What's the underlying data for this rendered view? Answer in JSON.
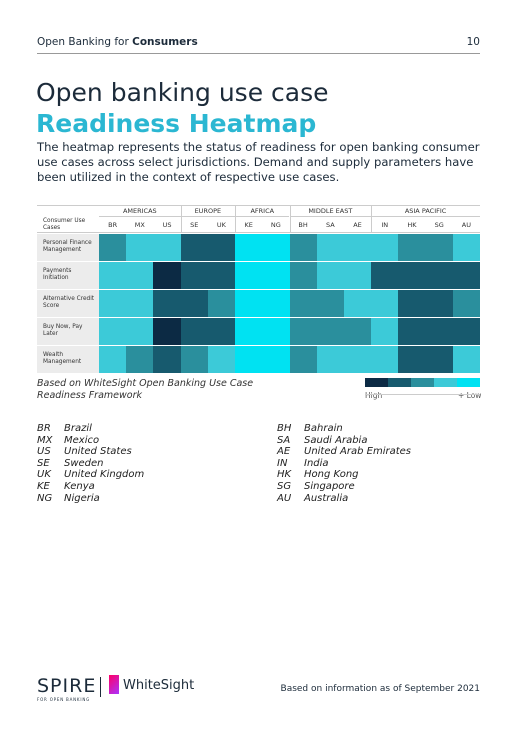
{
  "header": {
    "section": "Open Banking for",
    "section_bold": "Consumers",
    "page": "10"
  },
  "title": {
    "line1": "Open banking use case",
    "line2": "Readiness Heatmap"
  },
  "intro": "The heatmap represents the status of readiness for open banking consumer use cases across select jurisdictions. Demand and supply parameters have been utilized in the context of respective use cases.",
  "heatmap": {
    "corner": "Consumer Use Cases",
    "regions": [
      {
        "name": "AMERICAS",
        "columns": [
          "BR",
          "MX",
          "US"
        ]
      },
      {
        "name": "EUROPE",
        "columns": [
          "SE",
          "UK"
        ]
      },
      {
        "name": "AFRICA",
        "columns": [
          "KE",
          "NG"
        ]
      },
      {
        "name": "MIDDLE EAST",
        "columns": [
          "BH",
          "SA",
          "AE"
        ]
      },
      {
        "name": "ASIA PACIFIC",
        "columns": [
          "IN",
          "HK",
          "SG",
          "AU"
        ]
      }
    ],
    "rows": [
      {
        "label": "Personal Finance Management",
        "values": [
          3,
          4,
          4,
          2,
          2,
          5,
          5,
          3,
          4,
          4,
          4,
          3,
          3,
          4
        ]
      },
      {
        "label": "Payments Initiation",
        "values": [
          4,
          4,
          1,
          2,
          2,
          5,
          5,
          3,
          4,
          4,
          2,
          2,
          2,
          2
        ]
      },
      {
        "label": "Alternative Credit Score",
        "values": [
          4,
          4,
          2,
          2,
          3,
          5,
          5,
          3,
          3,
          4,
          4,
          2,
          2,
          3
        ]
      },
      {
        "label": "Buy Now, Pay Later",
        "values": [
          4,
          4,
          1,
          2,
          2,
          5,
          5,
          3,
          3,
          3,
          4,
          2,
          2,
          2
        ]
      },
      {
        "label": "Wealth Management",
        "values": [
          4,
          3,
          2,
          3,
          4,
          5,
          5,
          3,
          4,
          4,
          4,
          2,
          2,
          4
        ]
      }
    ],
    "palette": [
      "#0c2a44",
      "#175a6e",
      "#2a8f9d",
      "#3ccad8",
      "#00e2f2"
    ]
  },
  "caption": "Based on WhiteSight Open Banking Use Case Readiness Framework",
  "legend": {
    "high": "High",
    "low": "+ Low"
  },
  "abbreviations": {
    "left": [
      [
        "BR",
        "Brazil"
      ],
      [
        "MX",
        "Mexico"
      ],
      [
        "US",
        "United States"
      ],
      [
        "SE",
        "Sweden"
      ],
      [
        "UK",
        "United Kingdom"
      ],
      [
        "KE",
        "Kenya"
      ],
      [
        "NG",
        "Nigeria"
      ]
    ],
    "right": [
      [
        "BH",
        "Bahrain"
      ],
      [
        "SA",
        "Saudi Arabia"
      ],
      [
        "AE",
        "United Arab Emirates"
      ],
      [
        "IN",
        "India"
      ],
      [
        "HK",
        "Hong Kong"
      ],
      [
        "SG",
        "Singapore"
      ],
      [
        "AU",
        "Australia"
      ]
    ]
  },
  "footer": {
    "logo": "SPIRE",
    "logo_sub": "FOR OPEN BANKING",
    "brand": "WhiteSight",
    "note": "Based on information as of September 2021"
  }
}
